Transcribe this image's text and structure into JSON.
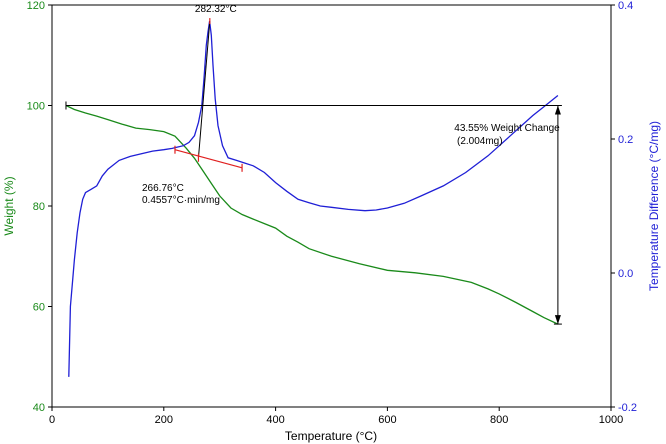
{
  "chart_data": {
    "type": "line",
    "xlabel": "Temperature (°C)",
    "ylabel_left": "Weight (%)",
    "ylabel_right": "Temperature Difference (°C/mg)",
    "xlim": [
      0,
      1000
    ],
    "ylim_left": [
      40,
      120
    ],
    "ylim_right": [
      -0.2,
      0.4
    ],
    "x_ticks": [
      0,
      200,
      400,
      600,
      800,
      1000
    ],
    "y_left_ticks": [
      40,
      60,
      80,
      100,
      120
    ],
    "y_right_ticks": [
      -0.2,
      0.0,
      0.2,
      0.4
    ],
    "y_right_tick_labels": [
      "-0.2",
      "0.0",
      "0.2",
      "0.4"
    ],
    "colors": {
      "weight": "#1a8a1a",
      "diff": "#1f1fd6",
      "left_axis": "#1a8a1a",
      "right_axis": "#1f1fd6",
      "marker": "#e02020",
      "black": "#000000"
    },
    "series": [
      {
        "key": "weight",
        "axis": "left",
        "x": [
          25,
          40,
          60,
          80,
          100,
          125,
          150,
          175,
          200,
          220,
          240,
          255,
          270,
          285,
          300,
          320,
          340,
          360,
          380,
          400,
          420,
          440,
          460,
          500,
          550,
          600,
          650,
          700,
          750,
          780,
          800,
          830,
          860,
          880,
          905
        ],
        "y": [
          100.0,
          99.2,
          98.5,
          97.9,
          97.2,
          96.3,
          95.5,
          95.2,
          94.8,
          93.9,
          91.5,
          89.5,
          87.0,
          84.5,
          82.0,
          79.6,
          78.3,
          77.4,
          76.5,
          75.6,
          74.0,
          72.8,
          71.5,
          70.0,
          68.5,
          67.2,
          66.7,
          66.0,
          64.8,
          63.5,
          62.5,
          60.8,
          59.0,
          57.8,
          56.5
        ]
      },
      {
        "key": "diff",
        "axis": "right",
        "x": [
          30,
          33,
          37,
          40,
          45,
          50,
          55,
          60,
          70,
          80,
          90,
          100,
          120,
          140,
          160,
          180,
          200,
          215,
          225,
          235,
          245,
          255,
          262,
          268,
          272,
          276,
          279,
          282,
          285,
          288,
          292,
          297,
          305,
          315,
          330,
          345,
          360,
          380,
          400,
          420,
          440,
          460,
          480,
          500,
          530,
          560,
          580,
          600,
          630,
          660,
          700,
          740,
          780,
          820,
          860,
          880,
          905
        ],
        "y": [
          -0.155,
          -0.05,
          -0.01,
          0.02,
          0.06,
          0.09,
          0.11,
          0.12,
          0.125,
          0.13,
          0.145,
          0.155,
          0.168,
          0.174,
          0.178,
          0.182,
          0.184,
          0.186,
          0.188,
          0.19,
          0.195,
          0.205,
          0.225,
          0.25,
          0.29,
          0.34,
          0.36,
          0.376,
          0.355,
          0.31,
          0.26,
          0.22,
          0.19,
          0.172,
          0.168,
          0.164,
          0.16,
          0.15,
          0.135,
          0.122,
          0.11,
          0.105,
          0.1,
          0.098,
          0.095,
          0.093,
          0.094,
          0.097,
          0.104,
          0.115,
          0.13,
          0.15,
          0.175,
          0.205,
          0.235,
          0.248,
          0.265
        ]
      }
    ],
    "baseline": {
      "x": [
        25,
        905
      ],
      "y": [
        100,
        100
      ]
    },
    "peak": {
      "x": 282.32,
      "y": 0.376,
      "label": "282.32°C"
    },
    "onset": {
      "tangent_x": [
        220,
        340
      ],
      "tangent_y": [
        0.184,
        0.157
      ],
      "drop_x": [
        262,
        282.32
      ],
      "drop_y": [
        0.172,
        0.376
      ],
      "label_temp": "266.76°C",
      "label_rate": "0.4557°C·min/mg"
    },
    "weight_change": {
      "x": 905,
      "y_top": 100,
      "y_bottom": 56.5,
      "label_percent": "43.55% Weight Change",
      "label_mass": "(2.004mg)"
    }
  }
}
